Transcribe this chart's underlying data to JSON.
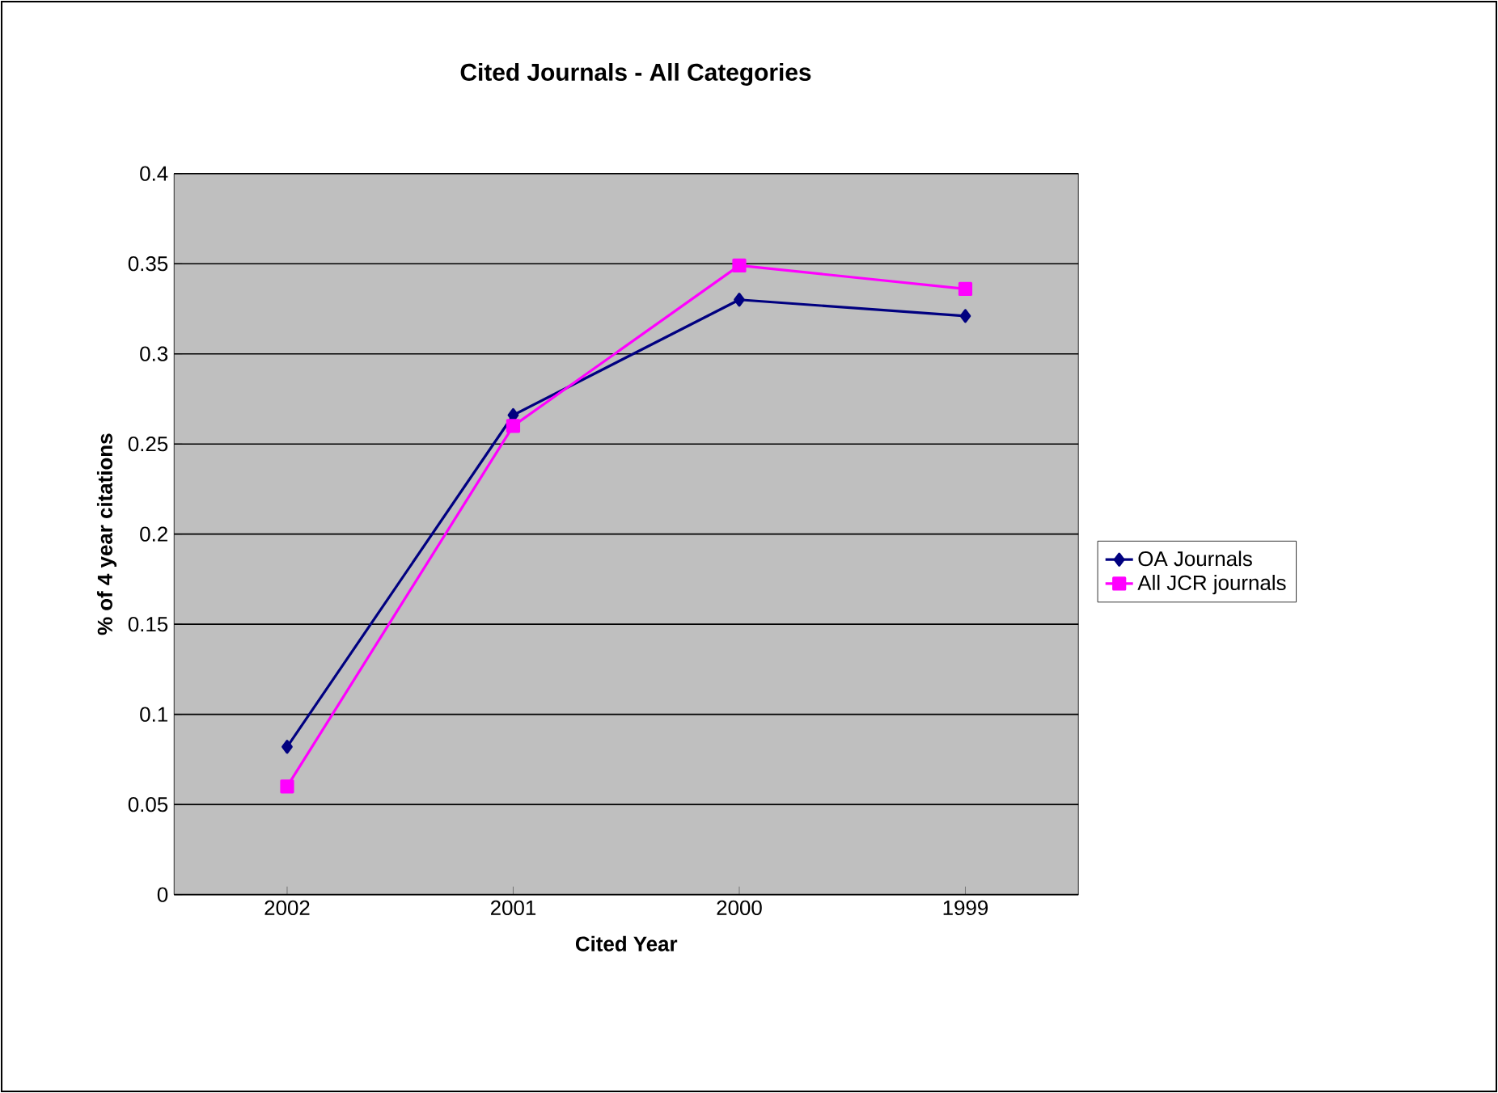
{
  "chart_data": {
    "type": "line",
    "title": "Cited Journals - All Categories",
    "xlabel": "Cited Year",
    "ylabel": "% of 4 year citations",
    "categories": [
      "2002",
      "2001",
      "2000",
      "1999"
    ],
    "series": [
      {
        "name": "OA Journals",
        "color": "#000080",
        "marker": "diamond",
        "values": [
          0.082,
          0.266,
          0.33,
          0.321
        ]
      },
      {
        "name": "All JCR journals",
        "color": "#ff00ff",
        "marker": "square",
        "values": [
          0.06,
          0.26,
          0.349,
          0.336
        ]
      }
    ],
    "ylim": [
      0,
      0.4
    ],
    "yticks": [
      0,
      0.05,
      0.1,
      0.15,
      0.2,
      0.25,
      0.3,
      0.35,
      0.4
    ],
    "grid": "y",
    "legend": "right"
  }
}
